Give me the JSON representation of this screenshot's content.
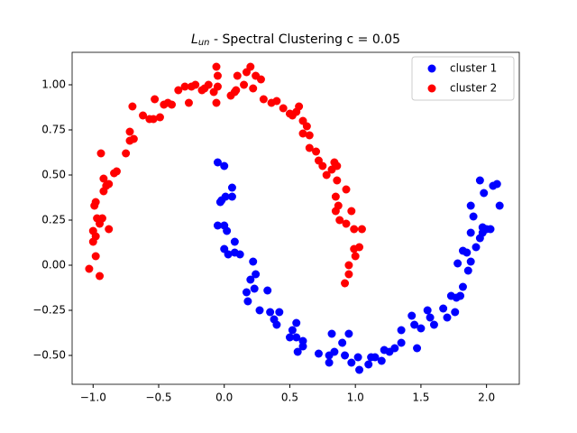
{
  "chart_data": {
    "type": "scatter",
    "title": {
      "main": "L",
      "sub": "un",
      "rest": " - Spectral Clustering c = 0.05"
    },
    "xlim": [
      -1.16,
      2.25
    ],
    "ylim": [
      -0.66,
      1.18
    ],
    "xticks": [
      {
        "value": -1,
        "label": "−1.0"
      },
      {
        "value": -0.5,
        "label": "−0.5"
      },
      {
        "value": 0,
        "label": "0.0"
      },
      {
        "value": 0.5,
        "label": "0.5"
      },
      {
        "value": 1,
        "label": "1.0"
      },
      {
        "value": 1.5,
        "label": "1.5"
      },
      {
        "value": 2,
        "label": "2.0"
      }
    ],
    "yticks": [
      {
        "value": -0.5,
        "label": "−0.50"
      },
      {
        "value": -0.25,
        "label": "−0.25"
      },
      {
        "value": 0,
        "label": "0.00"
      },
      {
        "value": 0.25,
        "label": "0.25"
      },
      {
        "value": 0.5,
        "label": "0.50"
      },
      {
        "value": 0.75,
        "label": "0.75"
      },
      {
        "value": 1,
        "label": "1.00"
      }
    ],
    "legend": "upper right",
    "series": [
      {
        "name": "cluster 1",
        "color": "#0000ff",
        "x": [
          -0.05,
          0.0,
          -0.05,
          0.0,
          -0.02,
          0.01,
          0.06,
          0.06,
          -0.03,
          0.0,
          0.03,
          0.08,
          0.08,
          0.12,
          0.02,
          0.22,
          0.24,
          0.2,
          0.23,
          0.17,
          0.18,
          0.27,
          0.33,
          0.35,
          0.38,
          0.42,
          0.4,
          0.5,
          0.52,
          0.55,
          0.55,
          0.56,
          0.6,
          0.6,
          0.72,
          0.8,
          0.8,
          0.82,
          0.84,
          0.9,
          0.92,
          0.95,
          0.97,
          1.03,
          1.02,
          1.1,
          1.12,
          1.15,
          1.2,
          1.22,
          1.26,
          1.3,
          1.35,
          1.35,
          1.43,
          1.45,
          1.47,
          1.5,
          1.55,
          1.57,
          1.6,
          1.67,
          1.7,
          1.73,
          1.76,
          1.77,
          1.8,
          1.82,
          1.86,
          1.78,
          1.82,
          1.85,
          1.88,
          1.88,
          1.92,
          1.9,
          1.88,
          1.95,
          1.95,
          1.97,
          1.97,
          2.0,
          2.03,
          2.05,
          2.08,
          2.1,
          1.98
        ],
        "y": [
          0.57,
          0.55,
          0.22,
          0.22,
          0.36,
          0.38,
          0.38,
          0.43,
          0.35,
          0.09,
          0.06,
          0.13,
          0.07,
          0.06,
          0.19,
          0.02,
          -0.05,
          -0.08,
          -0.13,
          -0.15,
          -0.2,
          -0.25,
          -0.14,
          -0.26,
          -0.3,
          -0.26,
          -0.33,
          -0.4,
          -0.36,
          -0.32,
          -0.4,
          -0.48,
          -0.42,
          -0.45,
          -0.49,
          -0.5,
          -0.54,
          -0.38,
          -0.48,
          -0.43,
          -0.5,
          -0.38,
          -0.54,
          -0.58,
          -0.51,
          -0.55,
          -0.51,
          -0.51,
          -0.53,
          -0.47,
          -0.48,
          -0.46,
          -0.43,
          -0.36,
          -0.28,
          -0.33,
          -0.46,
          -0.35,
          -0.25,
          -0.29,
          -0.33,
          -0.24,
          -0.29,
          -0.17,
          -0.26,
          -0.18,
          -0.17,
          -0.12,
          -0.03,
          0.01,
          0.08,
          0.07,
          0.02,
          0.18,
          0.1,
          0.27,
          0.33,
          0.47,
          0.15,
          0.18,
          0.21,
          0.2,
          0.2,
          0.44,
          0.45,
          0.33,
          0.4
        ]
      },
      {
        "name": "cluster 2",
        "color": "#ff0000",
        "x": [
          -1.03,
          -0.98,
          -0.95,
          -1.0,
          -1.0,
          -0.98,
          -0.95,
          -0.97,
          -0.93,
          -0.99,
          -0.98,
          -0.88,
          -0.92,
          -0.9,
          -0.88,
          -0.92,
          -0.84,
          -0.82,
          -0.94,
          -0.75,
          -0.72,
          -0.69,
          -0.72,
          -0.7,
          -0.62,
          -0.57,
          -0.54,
          -0.53,
          -0.49,
          -0.46,
          -0.43,
          -0.4,
          -0.35,
          -0.3,
          -0.27,
          -0.25,
          -0.22,
          -0.17,
          -0.15,
          -0.12,
          -0.08,
          -0.06,
          -0.05,
          -0.06,
          -0.05,
          0.05,
          0.08,
          0.09,
          0.1,
          0.15,
          0.17,
          0.2,
          0.22,
          0.24,
          0.28,
          0.3,
          0.36,
          0.4,
          0.45,
          0.5,
          0.52,
          0.55,
          0.57,
          0.6,
          0.6,
          0.63,
          0.65,
          0.65,
          0.7,
          0.72,
          0.75,
          0.78,
          0.82,
          0.84,
          0.86,
          0.86,
          0.85,
          0.87,
          0.85,
          0.88,
          0.93,
          0.93,
          0.97,
          0.99,
          0.99,
          1.03,
          1.05,
          1.0,
          0.95,
          0.92,
          0.95
        ],
        "y": [
          -0.02,
          0.05,
          -0.06,
          0.13,
          0.19,
          0.16,
          0.23,
          0.26,
          0.26,
          0.33,
          0.35,
          0.2,
          0.41,
          0.44,
          0.45,
          0.48,
          0.51,
          0.52,
          0.62,
          0.62,
          0.69,
          0.7,
          0.74,
          0.88,
          0.83,
          0.81,
          0.81,
          0.92,
          0.82,
          0.89,
          0.9,
          0.89,
          0.97,
          0.99,
          0.9,
          0.99,
          1.0,
          0.97,
          0.98,
          1.0,
          0.96,
          1.1,
          0.99,
          0.9,
          1.05,
          0.94,
          0.96,
          0.97,
          1.05,
          1.0,
          1.07,
          1.1,
          0.98,
          1.05,
          1.03,
          0.92,
          0.9,
          0.91,
          0.87,
          0.84,
          0.83,
          0.85,
          0.88,
          0.8,
          0.73,
          0.77,
          0.72,
          0.65,
          0.63,
          0.58,
          0.55,
          0.5,
          0.53,
          0.57,
          0.55,
          0.47,
          0.38,
          0.33,
          0.3,
          0.25,
          0.23,
          0.42,
          0.3,
          0.2,
          0.09,
          0.1,
          0.2,
          0.05,
          0.0,
          -0.1,
          -0.05
        ]
      }
    ]
  }
}
